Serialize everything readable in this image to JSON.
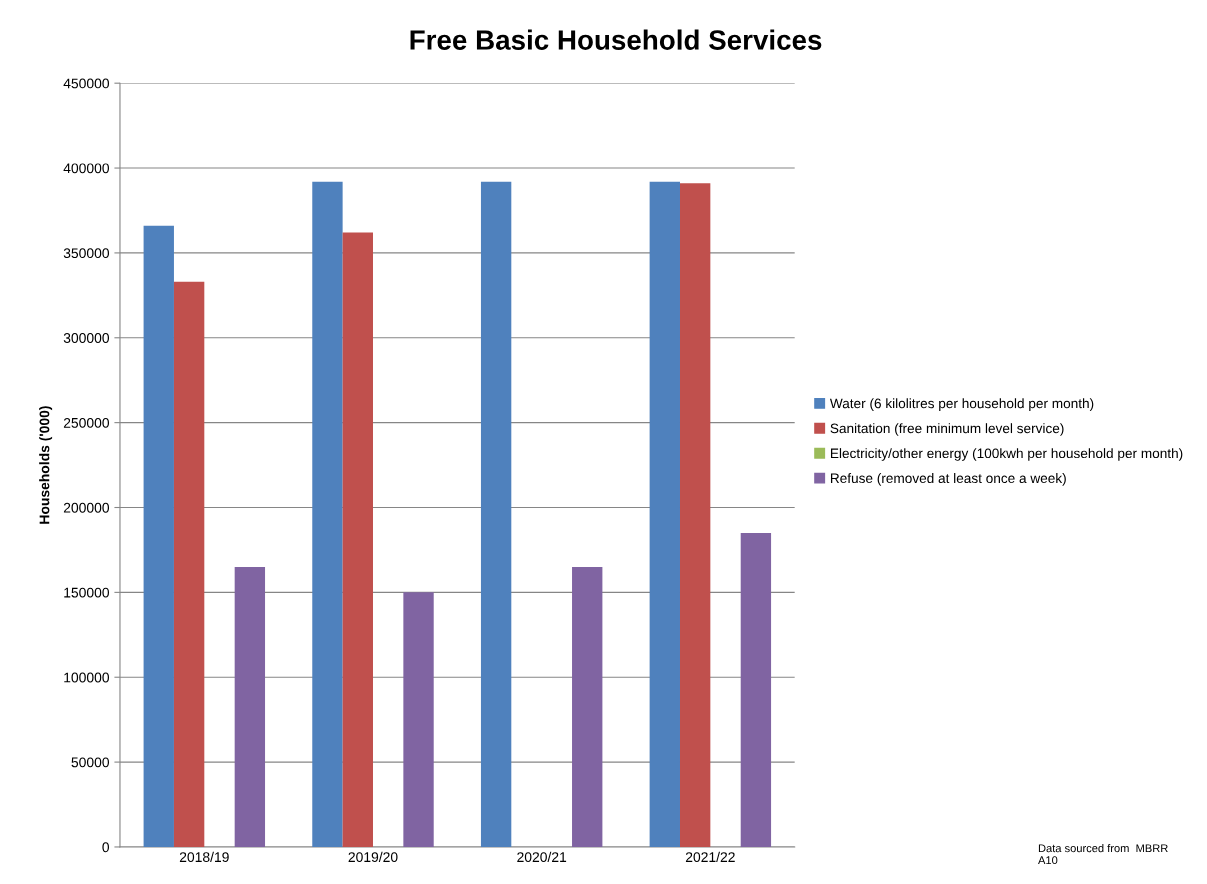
{
  "chart_data": {
    "type": "bar",
    "title": "Free Basic Household Services",
    "ylabel": "Households ('000)",
    "categories": [
      "2018/19",
      "2019/20",
      "2020/21",
      "2021/22"
    ],
    "series": [
      {
        "name": "Water (6 kilolitres per household per month)",
        "color": "#4f81bd",
        "values": [
          366000,
          392000,
          392000,
          392000
        ]
      },
      {
        "name": "Sanitation (free minimum level service)",
        "color": "#c0504d",
        "values": [
          333000,
          362000,
          0,
          391000
        ]
      },
      {
        "name": "Electricity/other energy (100kwh per household per month)",
        "color": "#9bbb59",
        "values": [
          0,
          0,
          0,
          0
        ]
      },
      {
        "name": "Refuse (removed at least once a week)",
        "color": "#8064a2",
        "values": [
          165000,
          150000,
          165000,
          185000
        ]
      }
    ],
    "ylim": [
      0,
      450000
    ],
    "yticks": [
      0,
      50000,
      100000,
      150000,
      200000,
      250000,
      300000,
      350000,
      400000,
      450000
    ],
    "grid": "y",
    "legend": "right",
    "annotations": [
      "Data sourced from  MBRR\nA10"
    ]
  }
}
